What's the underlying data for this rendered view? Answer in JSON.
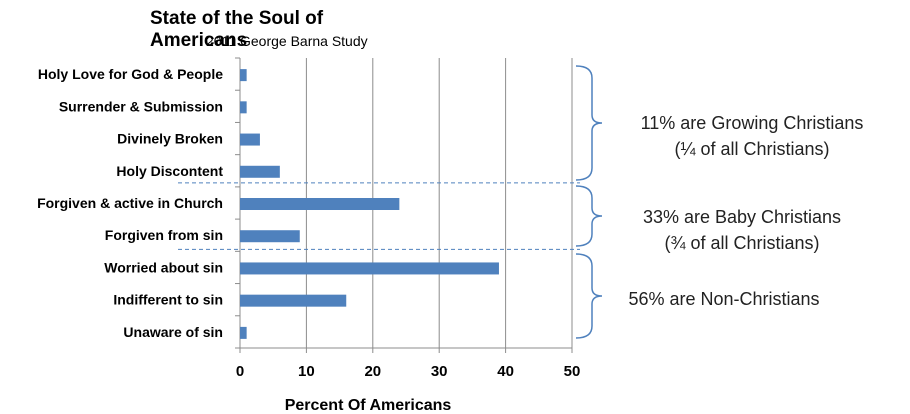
{
  "chart_data": {
    "type": "bar",
    "orientation": "horizontal",
    "title": "State of the Soul of Americans",
    "subtitle": "2011 George Barna Study",
    "xlabel": "Percent Of Americans",
    "ylabel": "",
    "xlim": [
      0,
      50
    ],
    "xticks": [
      "0",
      "10",
      "20",
      "30",
      "40",
      "50"
    ],
    "grid": "vertical",
    "bar_color": "#4f81bd",
    "categories": [
      "Holy Love for God & People",
      "Surrender & Submission",
      "Divinely Broken",
      "Holy Discontent",
      "Forgiven & active in Church",
      "Forgiven from sin",
      "Worried about sin",
      "Indifferent to sin",
      "Unaware of sin"
    ],
    "values": [
      1,
      1,
      3,
      6,
      24,
      9,
      39,
      16,
      1
    ],
    "annotations": [
      {
        "line1": "11% are Growing Christians",
        "line2": "(¼ of all Christians)"
      },
      {
        "line1": "33% are Baby Christians",
        "line2": "(¾ of all Christians)"
      },
      {
        "line1": "56% are Non-Christians",
        "line2": ""
      }
    ],
    "accent_colors": {
      "bracket": "#4f81bd",
      "divider": "#4f81bd"
    }
  }
}
